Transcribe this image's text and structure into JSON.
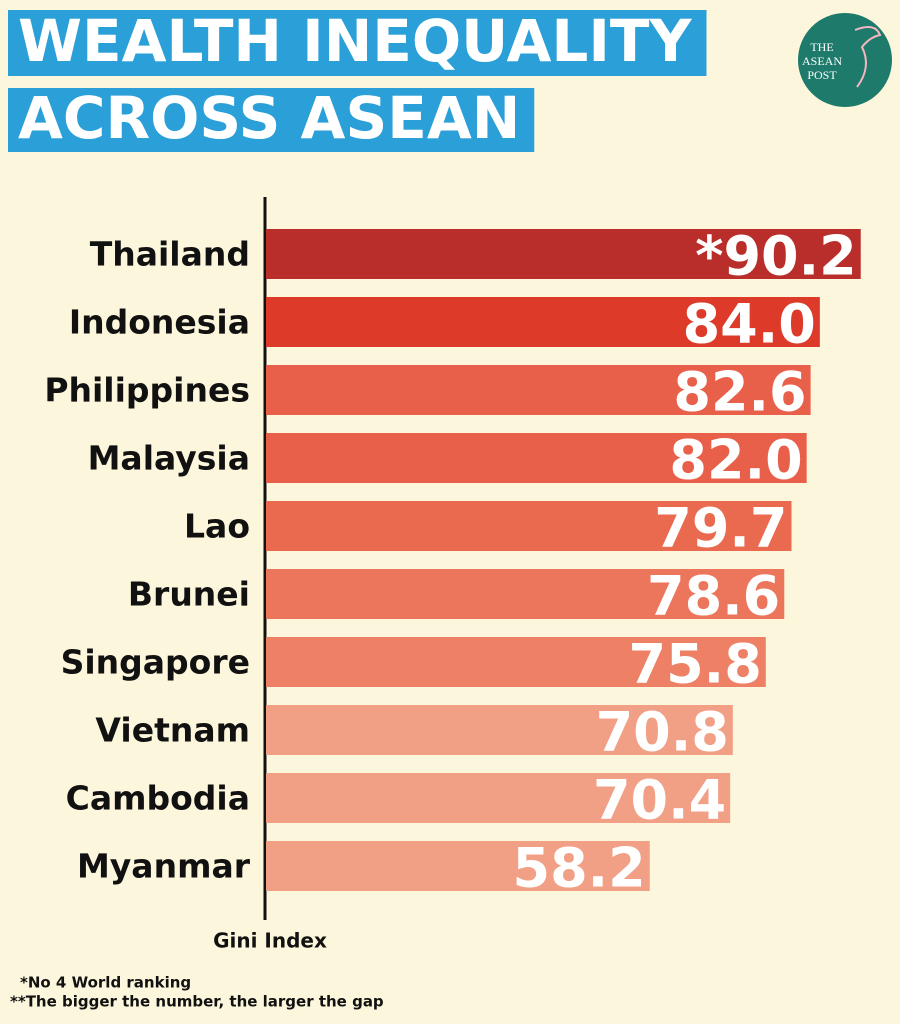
{
  "chart_data": {
    "type": "bar",
    "orientation": "horizontal",
    "title": [
      "WEALTH INEQUALITY",
      "ACROSS ASEAN"
    ],
    "logo": [
      "THE",
      "ASEAN",
      "POST"
    ],
    "categories": [
      "Thailand",
      "Indonesia",
      "Philippines",
      "Malaysia",
      "Lao",
      "Brunei",
      "Singapore",
      "Vietnam",
      "Cambodia",
      "Myanmar"
    ],
    "values": [
      90.2,
      84.0,
      82.6,
      82.0,
      79.7,
      78.6,
      75.8,
      70.8,
      70.4,
      58.2
    ],
    "value_labels": [
      "*90.2",
      "84.0",
      "82.6",
      "82.0",
      "79.7",
      "78.6",
      "75.8",
      "70.8",
      "70.4",
      "58.2"
    ],
    "colors": [
      "#b92e2a",
      "#dd3a2a",
      "#e8604a",
      "#e8604a",
      "#ea6a4f",
      "#ec765b",
      "#ee8165",
      "#f19f85",
      "#f19f85",
      "#f19f85"
    ],
    "xlim": [
      0,
      91
    ],
    "x_label": "Gini Index",
    "footnotes": [
      "*No 4 World ranking",
      "**The bigger the number, the larger the gap"
    ]
  }
}
